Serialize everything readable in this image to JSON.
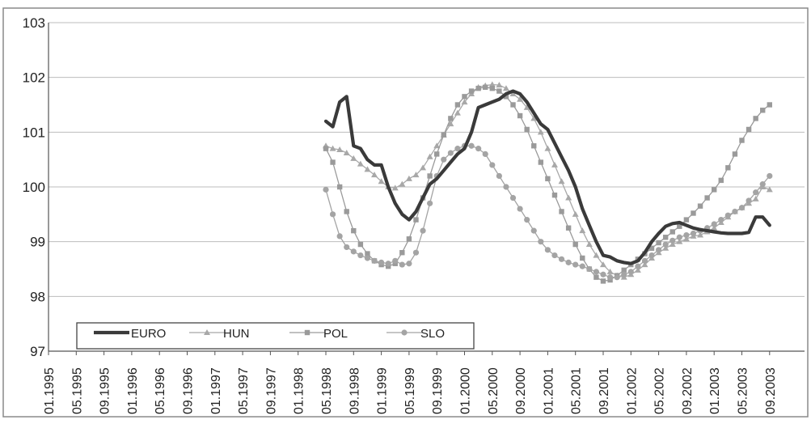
{
  "chart_data": {
    "type": "line",
    "title": "",
    "xlabel": "",
    "ylabel": "",
    "ylim": [
      97,
      103
    ],
    "yticks": [
      "97",
      "98",
      "99",
      "100",
      "101",
      "102",
      "103"
    ],
    "xticks": [
      "01.1995",
      "05.1995",
      "09.1995",
      "01.1996",
      "05.1996",
      "09.1996",
      "01.1997",
      "05.1997",
      "09.1997",
      "01.1998",
      "05.1998",
      "09.1998",
      "01.1999",
      "05.1999",
      "09.1999",
      "01.2000",
      "05.2000",
      "09.2000",
      "01.2001",
      "05.2001",
      "09.2001",
      "01.2002",
      "05.2002",
      "09.2002",
      "01.2003",
      "05.2003",
      "09.2003"
    ],
    "grid": true,
    "legend_position": "bottom-left",
    "x_start_month": "05.1998",
    "colors": {
      "EURO": "#3a3a3a",
      "HUN": "#a8a8a8",
      "POL": "#9a9a9a",
      "SLO": "#a4a4a4"
    },
    "series": [
      {
        "name": "EURO",
        "marker": "none",
        "values": [
          101.2,
          101.1,
          101.55,
          101.65,
          100.75,
          100.7,
          100.5,
          100.4,
          100.4,
          100.0,
          99.7,
          99.5,
          99.4,
          99.55,
          99.8,
          100.05,
          100.15,
          100.3,
          100.45,
          100.6,
          100.7,
          101.0,
          101.45,
          101.5,
          101.55,
          101.6,
          101.7,
          101.75,
          101.7,
          101.55,
          101.35,
          101.15,
          101.05,
          100.8,
          100.55,
          100.3,
          100.0,
          99.6,
          99.3,
          99.0,
          98.75,
          98.72,
          98.65,
          98.62,
          98.6,
          98.65,
          98.8,
          99.0,
          99.15,
          99.28,
          99.33,
          99.35,
          99.3,
          99.25,
          99.22,
          99.2,
          99.18,
          99.16,
          99.15,
          99.15,
          99.15,
          99.17,
          99.45,
          99.45,
          99.3
        ]
      },
      {
        "name": "HUN",
        "marker": "triangle",
        "values": [
          100.75,
          100.7,
          100.68,
          100.62,
          100.52,
          100.42,
          100.32,
          100.22,
          100.1,
          100.0,
          99.98,
          100.05,
          100.15,
          100.22,
          100.35,
          100.55,
          100.75,
          100.95,
          101.15,
          101.35,
          101.55,
          101.7,
          101.82,
          101.85,
          101.87,
          101.86,
          101.8,
          101.7,
          101.6,
          101.45,
          101.25,
          101.0,
          100.7,
          100.4,
          100.1,
          99.8,
          99.5,
          99.2,
          98.95,
          98.75,
          98.58,
          98.45,
          98.38,
          98.35,
          98.4,
          98.48,
          98.58,
          98.7,
          98.8,
          98.88,
          98.95,
          99.0,
          99.05,
          99.1,
          99.12,
          99.18,
          99.25,
          99.35,
          99.45,
          99.55,
          99.62,
          99.7,
          99.78,
          100.0,
          99.95
        ]
      },
      {
        "name": "POL",
        "marker": "square",
        "values": [
          100.7,
          100.45,
          100.0,
          99.55,
          99.2,
          98.95,
          98.78,
          98.65,
          98.58,
          98.55,
          98.6,
          98.8,
          99.05,
          99.4,
          99.8,
          100.2,
          100.6,
          100.95,
          101.25,
          101.5,
          101.65,
          101.75,
          101.8,
          101.82,
          101.8,
          101.75,
          101.65,
          101.5,
          101.3,
          101.05,
          100.75,
          100.45,
          100.15,
          99.85,
          99.55,
          99.25,
          98.95,
          98.7,
          98.5,
          98.35,
          98.28,
          98.3,
          98.38,
          98.48,
          98.58,
          98.68,
          98.78,
          98.88,
          98.98,
          99.08,
          99.18,
          99.28,
          99.4,
          99.52,
          99.65,
          99.8,
          99.95,
          100.12,
          100.35,
          100.6,
          100.85,
          101.05,
          101.25,
          101.4,
          101.5
        ]
      },
      {
        "name": "SLO",
        "marker": "circle",
        "values": [
          99.95,
          99.5,
          99.1,
          98.9,
          98.82,
          98.75,
          98.7,
          98.65,
          98.62,
          98.6,
          98.65,
          98.58,
          98.6,
          98.8,
          99.2,
          99.7,
          100.2,
          100.5,
          100.62,
          100.7,
          100.75,
          100.75,
          100.7,
          100.6,
          100.4,
          100.2,
          100.0,
          99.8,
          99.6,
          99.4,
          99.2,
          99.0,
          98.85,
          98.75,
          98.68,
          98.62,
          98.58,
          98.55,
          98.5,
          98.45,
          98.4,
          98.35,
          98.35,
          98.4,
          98.45,
          98.55,
          98.65,
          98.75,
          98.85,
          98.95,
          99.02,
          99.08,
          99.12,
          99.15,
          99.2,
          99.25,
          99.32,
          99.4,
          99.48,
          99.55,
          99.62,
          99.75,
          99.9,
          100.05,
          100.2
        ]
      }
    ]
  }
}
